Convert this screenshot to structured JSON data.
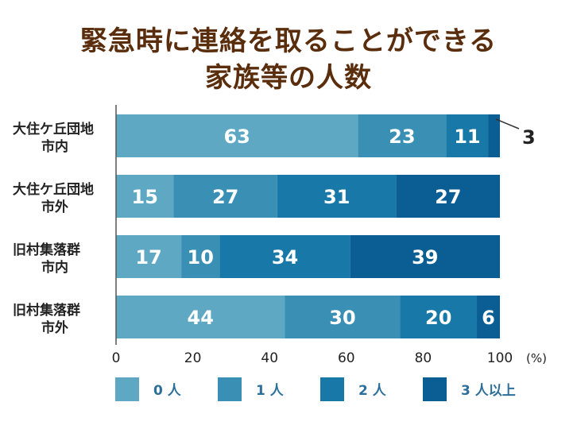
{
  "chart_data": {
    "type": "bar",
    "orientation": "horizontal",
    "stacked": true,
    "title_lines": [
      "緊急時に連絡を取ることができる",
      "家族等の人数"
    ],
    "categories": [
      [
        "大住ケ丘団地",
        "市内"
      ],
      [
        "大住ケ丘団地",
        "市外"
      ],
      [
        "旧村集落群",
        "市内"
      ],
      [
        "旧村集落群",
        "市外"
      ]
    ],
    "series": [
      {
        "name": "0 人",
        "color": "#5ea8c4",
        "values": [
          63,
          15,
          17,
          44
        ]
      },
      {
        "name": "1 人",
        "color": "#3a8fb5",
        "values": [
          23,
          27,
          10,
          30
        ]
      },
      {
        "name": "2 人",
        "color": "#1879a8",
        "values": [
          11,
          31,
          34,
          20
        ]
      },
      {
        "name": "3 人以上",
        "color": "#0b5e93",
        "values": [
          3,
          27,
          39,
          6
        ]
      }
    ],
    "xlim": [
      0,
      100
    ],
    "xticks": [
      0,
      20,
      40,
      60,
      80,
      100
    ],
    "x_unit": "(%)",
    "legend_position": "bottom",
    "grid": false
  }
}
